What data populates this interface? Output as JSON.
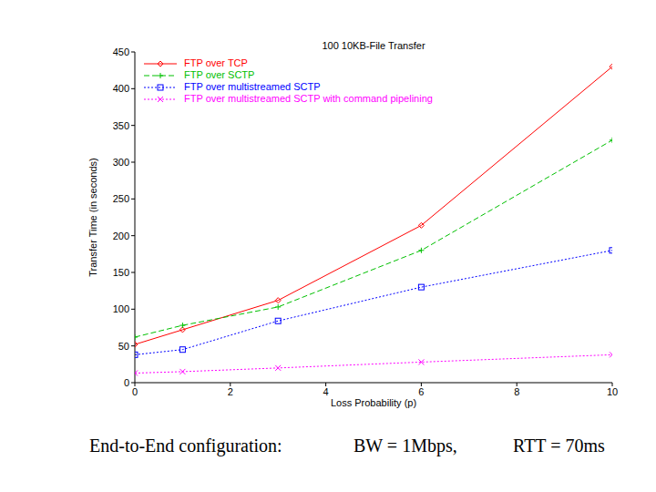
{
  "chart_data": {
    "type": "line",
    "title": "100 10KB-File Transfer",
    "x_label": "Loss Probability (p)",
    "y_label": "Transfer Time (in seconds)",
    "x": [
      0,
      1,
      3,
      6,
      10
    ],
    "series": [
      {
        "name": "FTP over TCP",
        "color": "#ff0000",
        "marker": "diamond",
        "line_style": "solid",
        "values": [
          52,
          72,
          112,
          214,
          430
        ]
      },
      {
        "name": "FTP over SCTP",
        "color": "#00c000",
        "marker": "plus",
        "line_style": "dashed",
        "values": [
          62,
          78,
          103,
          180,
          330
        ]
      },
      {
        "name": "FTP over multistreamed SCTP",
        "color": "#0000ff",
        "marker": "square",
        "line_style": "dotted",
        "values": [
          38,
          45,
          84,
          130,
          180
        ]
      },
      {
        "name": "FTP over multistreamed SCTP with command pipelining",
        "color": "#ff00ff",
        "marker": "x",
        "line_style": "dotted",
        "values": [
          13,
          15,
          20,
          28,
          38
        ]
      }
    ],
    "xlim": [
      0,
      10
    ],
    "xticks": [
      0,
      2,
      4,
      6,
      8,
      10
    ],
    "ylim": [
      0,
      450
    ],
    "yticks": [
      0,
      50,
      100,
      150,
      200,
      250,
      300,
      350,
      400,
      450
    ],
    "grid": false,
    "legend": "upper left",
    "annotations": [
      "End-to-End configuration:",
      "BW = 1Mbps,",
      "RTT = 70ms"
    ]
  }
}
